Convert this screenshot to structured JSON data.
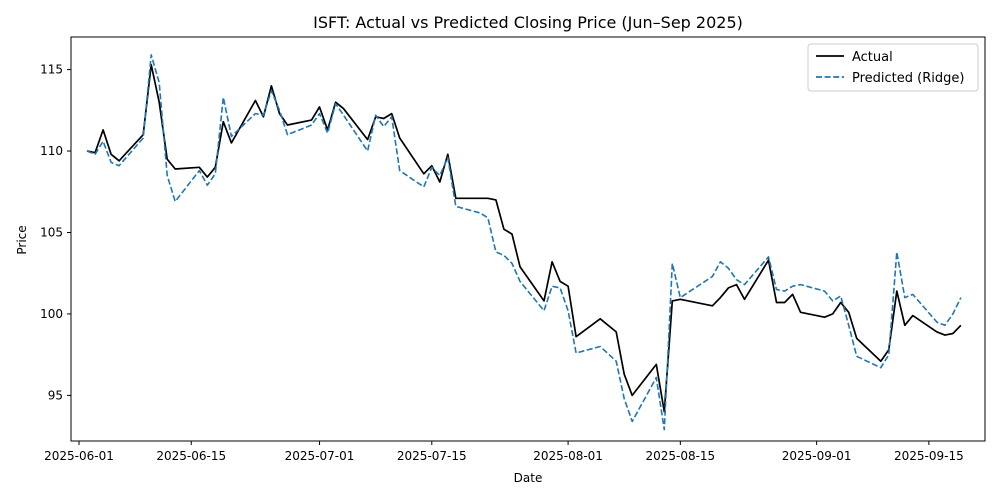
{
  "chart_data": {
    "type": "line",
    "title": "ISFT: Actual vs Predicted Closing Price (Jun–Sep 2025)",
    "xlabel": "Date",
    "ylabel": "Price",
    "xlim": [
      "2025-05-31",
      "2025-09-22"
    ],
    "ylim": [
      92.2,
      117.0
    ],
    "x_ticks": [
      "2025-06-01",
      "2025-06-15",
      "2025-07-01",
      "2025-07-15",
      "2025-08-01",
      "2025-08-15",
      "2025-09-01",
      "2025-09-15"
    ],
    "y_ticks": [
      95,
      100,
      105,
      110,
      115
    ],
    "grid": false,
    "legend": "top-right",
    "series": [
      {
        "name": "Actual",
        "color": "#000000",
        "style": "solid",
        "points": [
          [
            "2025-06-02",
            110.0
          ],
          [
            "2025-06-03",
            109.9
          ],
          [
            "2025-06-04",
            111.3
          ],
          [
            "2025-06-05",
            109.8
          ],
          [
            "2025-06-06",
            109.4
          ],
          [
            "2025-06-09",
            111.0
          ],
          [
            "2025-06-10",
            115.3
          ],
          [
            "2025-06-11",
            113.0
          ],
          [
            "2025-06-12",
            109.5
          ],
          [
            "2025-06-13",
            108.9
          ],
          [
            "2025-06-16",
            109.0
          ],
          [
            "2025-06-17",
            108.4
          ],
          [
            "2025-06-18",
            109.0
          ],
          [
            "2025-06-19",
            111.8
          ],
          [
            "2025-06-20",
            110.5
          ],
          [
            "2025-06-23",
            113.1
          ],
          [
            "2025-06-24",
            112.1
          ],
          [
            "2025-06-25",
            114.0
          ],
          [
            "2025-06-26",
            112.3
          ],
          [
            "2025-06-27",
            111.6
          ],
          [
            "2025-06-30",
            111.9
          ],
          [
            "2025-07-01",
            112.7
          ],
          [
            "2025-07-02",
            111.3
          ],
          [
            "2025-07-03",
            113.0
          ],
          [
            "2025-07-04",
            112.6
          ],
          [
            "2025-07-07",
            110.7
          ],
          [
            "2025-07-08",
            112.1
          ],
          [
            "2025-07-09",
            112.0
          ],
          [
            "2025-07-10",
            112.3
          ],
          [
            "2025-07-11",
            110.8
          ],
          [
            "2025-07-14",
            108.6
          ],
          [
            "2025-07-15",
            109.1
          ],
          [
            "2025-07-16",
            108.1
          ],
          [
            "2025-07-17",
            109.8
          ],
          [
            "2025-07-18",
            107.1
          ],
          [
            "2025-07-21",
            107.1
          ],
          [
            "2025-07-22",
            107.1
          ],
          [
            "2025-07-23",
            107.0
          ],
          [
            "2025-07-24",
            105.2
          ],
          [
            "2025-07-25",
            104.9
          ],
          [
            "2025-07-26",
            102.9
          ],
          [
            "2025-07-29",
            100.8
          ],
          [
            "2025-07-30",
            103.2
          ],
          [
            "2025-07-31",
            102.0
          ],
          [
            "2025-08-01",
            101.7
          ],
          [
            "2025-08-02",
            98.6
          ],
          [
            "2025-08-05",
            99.7
          ],
          [
            "2025-08-07",
            98.9
          ],
          [
            "2025-08-08",
            96.3
          ],
          [
            "2025-08-09",
            95.0
          ],
          [
            "2025-08-12",
            96.9
          ],
          [
            "2025-08-13",
            94.0
          ],
          [
            "2025-08-14",
            100.8
          ],
          [
            "2025-08-15",
            100.9
          ],
          [
            "2025-08-19",
            100.5
          ],
          [
            "2025-08-20",
            101.0
          ],
          [
            "2025-08-21",
            101.6
          ],
          [
            "2025-08-22",
            101.8
          ],
          [
            "2025-08-23",
            100.9
          ],
          [
            "2025-08-26",
            103.3
          ],
          [
            "2025-08-27",
            100.7
          ],
          [
            "2025-08-28",
            100.7
          ],
          [
            "2025-08-29",
            101.2
          ],
          [
            "2025-08-30",
            100.1
          ],
          [
            "2025-09-02",
            99.8
          ],
          [
            "2025-09-03",
            100.0
          ],
          [
            "2025-09-04",
            100.7
          ],
          [
            "2025-09-05",
            100.1
          ],
          [
            "2025-09-06",
            98.5
          ],
          [
            "2025-09-09",
            97.1
          ],
          [
            "2025-09-10",
            97.8
          ],
          [
            "2025-09-11",
            101.4
          ],
          [
            "2025-09-12",
            99.3
          ],
          [
            "2025-09-13",
            99.9
          ],
          [
            "2025-09-16",
            98.9
          ],
          [
            "2025-09-17",
            98.7
          ],
          [
            "2025-09-18",
            98.8
          ],
          [
            "2025-09-19",
            99.3
          ]
        ]
      },
      {
        "name": "Predicted (Ridge)",
        "color": "#1f77b4",
        "style": "dashed",
        "points": [
          [
            "2025-06-02",
            110.0
          ],
          [
            "2025-06-03",
            109.8
          ],
          [
            "2025-06-04",
            110.6
          ],
          [
            "2025-06-05",
            109.3
          ],
          [
            "2025-06-06",
            109.1
          ],
          [
            "2025-06-09",
            110.8
          ],
          [
            "2025-06-10",
            115.9
          ],
          [
            "2025-06-11",
            114.2
          ],
          [
            "2025-06-12",
            108.5
          ],
          [
            "2025-06-13",
            106.9
          ],
          [
            "2025-06-16",
            108.8
          ],
          [
            "2025-06-17",
            107.9
          ],
          [
            "2025-06-18",
            108.6
          ],
          [
            "2025-06-19",
            113.3
          ],
          [
            "2025-06-20",
            110.9
          ],
          [
            "2025-06-23",
            112.3
          ],
          [
            "2025-06-24",
            112.2
          ],
          [
            "2025-06-25",
            113.7
          ],
          [
            "2025-06-26",
            112.5
          ],
          [
            "2025-06-27",
            111.0
          ],
          [
            "2025-06-30",
            111.6
          ],
          [
            "2025-07-01",
            112.3
          ],
          [
            "2025-07-02",
            111.1
          ],
          [
            "2025-07-03",
            112.9
          ],
          [
            "2025-07-04",
            112.2
          ],
          [
            "2025-07-07",
            110.0
          ],
          [
            "2025-07-08",
            112.2
          ],
          [
            "2025-07-09",
            111.5
          ],
          [
            "2025-07-10",
            112.1
          ],
          [
            "2025-07-11",
            108.8
          ],
          [
            "2025-07-14",
            107.8
          ],
          [
            "2025-07-15",
            109.0
          ],
          [
            "2025-07-16",
            108.5
          ],
          [
            "2025-07-17",
            109.6
          ],
          [
            "2025-07-18",
            106.6
          ],
          [
            "2025-07-21",
            106.2
          ],
          [
            "2025-07-22",
            105.9
          ],
          [
            "2025-07-23",
            103.8
          ],
          [
            "2025-07-24",
            103.6
          ],
          [
            "2025-07-25",
            103.1
          ],
          [
            "2025-07-26",
            102.0
          ],
          [
            "2025-07-29",
            100.2
          ],
          [
            "2025-07-30",
            101.7
          ],
          [
            "2025-07-31",
            101.6
          ],
          [
            "2025-08-01",
            100.2
          ],
          [
            "2025-08-02",
            97.6
          ],
          [
            "2025-08-05",
            98.0
          ],
          [
            "2025-08-07",
            97.1
          ],
          [
            "2025-08-08",
            94.8
          ],
          [
            "2025-08-09",
            93.4
          ],
          [
            "2025-08-12",
            96.1
          ],
          [
            "2025-08-13",
            92.9
          ],
          [
            "2025-08-14",
            103.1
          ],
          [
            "2025-08-15",
            101.0
          ],
          [
            "2025-08-19",
            102.3
          ],
          [
            "2025-08-20",
            103.2
          ],
          [
            "2025-08-21",
            102.8
          ],
          [
            "2025-08-22",
            102.1
          ],
          [
            "2025-08-23",
            101.8
          ],
          [
            "2025-08-26",
            103.5
          ],
          [
            "2025-08-27",
            101.5
          ],
          [
            "2025-08-28",
            101.4
          ],
          [
            "2025-08-29",
            101.7
          ],
          [
            "2025-08-30",
            101.8
          ],
          [
            "2025-09-02",
            101.4
          ],
          [
            "2025-09-03",
            100.8
          ],
          [
            "2025-09-04",
            101.1
          ],
          [
            "2025-09-05",
            99.3
          ],
          [
            "2025-09-06",
            97.4
          ],
          [
            "2025-09-09",
            96.7
          ],
          [
            "2025-09-10",
            97.5
          ],
          [
            "2025-09-11",
            103.8
          ],
          [
            "2025-09-12",
            101.0
          ],
          [
            "2025-09-13",
            101.2
          ],
          [
            "2025-09-16",
            99.5
          ],
          [
            "2025-09-17",
            99.3
          ],
          [
            "2025-09-18",
            100.0
          ],
          [
            "2025-09-19",
            101.0
          ]
        ]
      }
    ]
  }
}
